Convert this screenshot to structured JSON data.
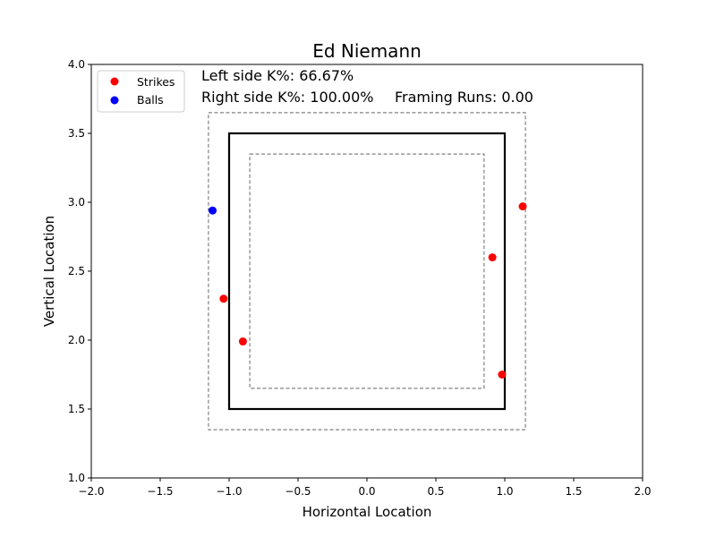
{
  "chart_data": {
    "type": "scatter",
    "title": "Ed Niemann",
    "xlabel": "Horizontal Location",
    "ylabel": "Vertical Location",
    "xlim": [
      -2.0,
      2.0
    ],
    "ylim": [
      1.0,
      4.0
    ],
    "xticks": [
      -2.0,
      -1.5,
      -1.0,
      -0.5,
      0.0,
      0.5,
      1.0,
      1.5,
      2.0
    ],
    "yticks": [
      1.0,
      1.5,
      2.0,
      2.5,
      3.0,
      3.5,
      4.0
    ],
    "xtick_labels": [
      "−2.0",
      "−1.5",
      "−1.0",
      "−0.5",
      "0.0",
      "0.5",
      "1.0",
      "1.5",
      "2.0"
    ],
    "ytick_labels": [
      "1.0",
      "1.5",
      "2.0",
      "2.5",
      "3.0",
      "3.5",
      "4.0"
    ],
    "grid": false,
    "legend_position": "top-left",
    "series": [
      {
        "name": "Strikes",
        "color": "#ff0000",
        "points": [
          {
            "x": 1.13,
            "y": 2.97
          },
          {
            "x": 0.91,
            "y": 2.6
          },
          {
            "x": -1.04,
            "y": 2.3
          },
          {
            "x": -0.9,
            "y": 1.99
          },
          {
            "x": 0.98,
            "y": 1.75
          }
        ]
      },
      {
        "name": "Balls",
        "color": "#0000ff",
        "points": [
          {
            "x": -1.12,
            "y": 2.94
          }
        ]
      }
    ],
    "zones": [
      {
        "kind": "strike-zone",
        "style": "solid",
        "color": "#000000",
        "x0": -1.0,
        "x1": 1.0,
        "y0": 1.5,
        "y1": 3.5
      },
      {
        "kind": "outer-zone",
        "style": "dashed",
        "color": "#808080",
        "x0": -1.15,
        "x1": 1.15,
        "y0": 1.35,
        "y1": 3.65
      },
      {
        "kind": "inner-zone",
        "style": "dashed",
        "color": "#808080",
        "x0": -0.85,
        "x1": 0.85,
        "y0": 1.65,
        "y1": 3.35
      }
    ],
    "annotations": {
      "left_k": "Left side K%: 66.67%",
      "right_k": "Right side K%: 100.00%",
      "framing": "Framing Runs: 0.00"
    }
  }
}
